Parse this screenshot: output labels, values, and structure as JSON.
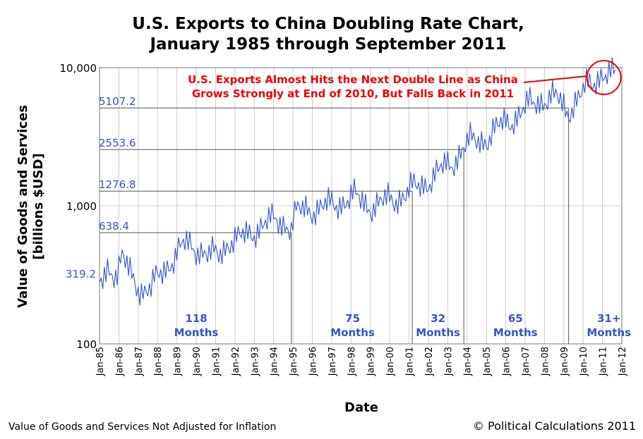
{
  "chart_data": {
    "type": "line",
    "title_lines": [
      "U.S. Exports to China Doubling Rate Chart,",
      "January 1985 through September 2011"
    ],
    "xlabel": "Date",
    "ylabel_lines": [
      "Value of Goods and Services",
      "[billions $USD]"
    ],
    "yscale": "log",
    "ylim": [
      100,
      10000
    ],
    "y_ticks": [
      "100",
      "1,000",
      "10,000"
    ],
    "x_ticks": [
      "Jan-85",
      "Jan-86",
      "Jan-87",
      "Jan-88",
      "Jan-89",
      "Jan-90",
      "Jan-91",
      "Jan-92",
      "Jan-93",
      "Jan-94",
      "Jan-95",
      "Jan-96",
      "Jan-97",
      "Jan-98",
      "Jan-99",
      "Jan-00",
      "Jan-01",
      "Jan-02",
      "Jan-03",
      "Jan-04",
      "Jan-05",
      "Jan-06",
      "Jan-07",
      "Jan-08",
      "Jan-09",
      "Jan-10",
      "Jan-11",
      "Jan-12"
    ],
    "grid": true,
    "line_color": "#3355cc",
    "label_color": "#3355cc",
    "annotation_color": "#ee0000",
    "double_levels": [
      {
        "value": 319.2,
        "label": "319.2"
      },
      {
        "value": 638.4,
        "label": "638.4",
        "reached": "Dec-94"
      },
      {
        "value": 1276.8,
        "label": "1276.8",
        "reached": "Mar-01"
      },
      {
        "value": 2553.6,
        "label": "2553.6",
        "reached": "Nov-03"
      },
      {
        "value": 5107.2,
        "label": "5107.2",
        "reached": "Apr-09"
      }
    ],
    "periods": [
      {
        "months": "118",
        "unit": "Months",
        "center": "Jan-90"
      },
      {
        "months": "75",
        "unit": "Months",
        "center": "Feb-98"
      },
      {
        "months": "32",
        "unit": "Months",
        "center": "Jul-02"
      },
      {
        "months": "65",
        "unit": "Months",
        "center": "Jul-06"
      },
      {
        "months": "31+",
        "unit": "Months",
        "center": "May-11"
      }
    ],
    "annotation": {
      "lines": [
        "U.S. Exports Almost Hits the Next Double Line as China",
        "Grows Strongly at End of 2010, But Falls Back in 2011"
      ],
      "points_to": "Jan-11"
    },
    "series_anchors": [
      [
        "1985-01",
        250
      ],
      [
        "1985-06",
        360
      ],
      [
        "1985-12",
        330
      ],
      [
        "1986-03",
        420
      ],
      [
        "1986-09",
        300
      ],
      [
        "1987-03",
        250
      ],
      [
        "1987-09",
        250
      ],
      [
        "1988-03",
        320
      ],
      [
        "1988-09",
        400
      ],
      [
        "1989-06",
        520
      ],
      [
        "1990-03",
        490
      ],
      [
        "1990-09",
        430
      ],
      [
        "1991-03",
        440
      ],
      [
        "1991-09",
        560
      ],
      [
        "1992-03",
        560
      ],
      [
        "1992-09",
        620
      ],
      [
        "1993-03",
        690
      ],
      [
        "1993-09",
        740
      ],
      [
        "1994-03",
        790
      ],
      [
        "1994-09",
        750
      ],
      [
        "1994-12",
        680
      ],
      [
        "1995-03",
        880
      ],
      [
        "1995-09",
        950
      ],
      [
        "1996-03",
        950
      ],
      [
        "1996-09",
        980
      ],
      [
        "1997-03",
        1020
      ],
      [
        "1997-09",
        1100
      ],
      [
        "1998-03",
        1150
      ],
      [
        "1998-09",
        1050
      ],
      [
        "1999-03",
        1000
      ],
      [
        "1999-09",
        1050
      ],
      [
        "2000-03",
        1100
      ],
      [
        "2000-09",
        1200
      ],
      [
        "2001-03",
        1300
      ],
      [
        "2001-09",
        1400
      ],
      [
        "2002-03",
        1600
      ],
      [
        "2002-09",
        1800
      ],
      [
        "2003-03",
        2000
      ],
      [
        "2003-11",
        2700
      ],
      [
        "2004-03",
        2850
      ],
      [
        "2004-09",
        2950
      ],
      [
        "2005-03",
        3200
      ],
      [
        "2005-09",
        3700
      ],
      [
        "2006-03",
        4100
      ],
      [
        "2006-09",
        4600
      ],
      [
        "2007-03",
        5200
      ],
      [
        "2007-09",
        5700
      ],
      [
        "2008-03",
        6100
      ],
      [
        "2008-09",
        5900
      ],
      [
        "2009-03",
        4800
      ],
      [
        "2009-09",
        5900
      ],
      [
        "2010-03",
        7000
      ],
      [
        "2010-09",
        8100
      ],
      [
        "2011-01",
        9600
      ],
      [
        "2011-05",
        8600
      ],
      [
        "2011-09",
        8900
      ]
    ]
  },
  "footer": {
    "left_note": "Value of Goods and Services Not Adjusted for Inflation",
    "credit": "© Political Calculations 2011"
  }
}
